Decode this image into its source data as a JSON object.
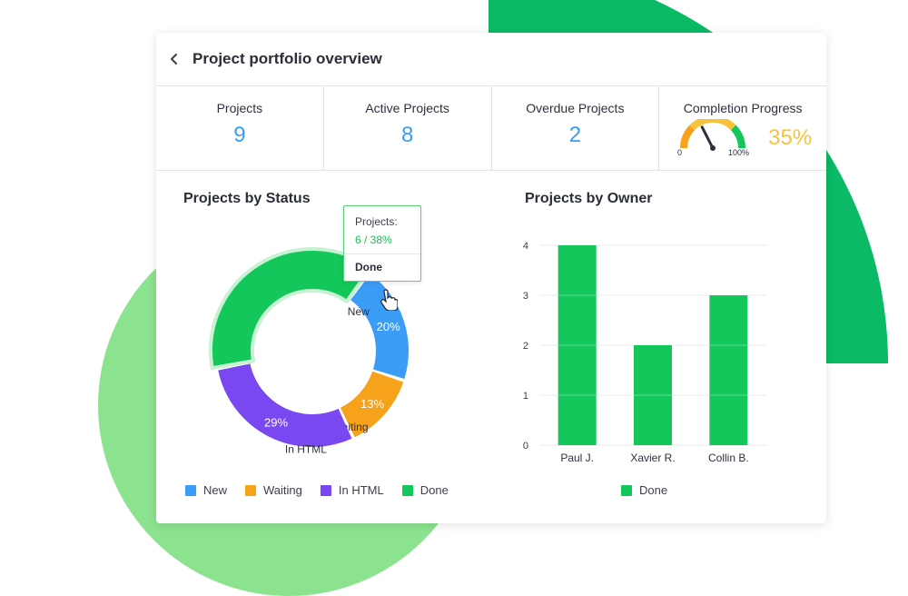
{
  "header": {
    "title": "Project portfolio overview"
  },
  "stats": [
    {
      "label": "Projects",
      "value": "9"
    },
    {
      "label": "Active Projects",
      "value": "8"
    },
    {
      "label": "Overdue Projects",
      "value": "2"
    },
    {
      "label": "Completion Progress",
      "value": "35%",
      "gauge_min": "0",
      "gauge_max": "100%",
      "gauge_fraction": 0.35
    }
  ],
  "colors": {
    "new": "#3b9cf6",
    "waiting": "#f7a21b",
    "in_html": "#7a48f0",
    "done": "#13c75a",
    "accent": "#3b9cf6",
    "gauge_value": "#f7c33a"
  },
  "status_chart": {
    "title": "Projects by Status",
    "tooltip": {
      "label": "Projects:",
      "value": "6 / 38%",
      "status": "Done"
    }
  },
  "owner_chart": {
    "title": "Projects by Owner"
  },
  "chart_data": [
    {
      "type": "pie",
      "title": "Projects by Status",
      "categories": [
        "New",
        "Waiting",
        "In HTML",
        "Done"
      ],
      "values": [
        20,
        13,
        29,
        38
      ],
      "value_labels": [
        "20%",
        "13%",
        "29%",
        ""
      ],
      "colors": [
        "#3b9cf6",
        "#f7a21b",
        "#7a48f0",
        "#13c75a"
      ],
      "highlighted": "Done",
      "legend": [
        "New",
        "Waiting",
        "In HTML",
        "Done"
      ],
      "legend_position": "bottom"
    },
    {
      "type": "bar",
      "title": "Projects by Owner",
      "categories": [
        "Paul J.",
        "Xavier R.",
        "Collin B."
      ],
      "series": [
        {
          "name": "Done",
          "values": [
            4,
            2,
            3
          ]
        }
      ],
      "ylim": [
        0,
        4
      ],
      "yticks": [
        "0",
        "1",
        "2",
        "3",
        "4"
      ],
      "grid": true,
      "colors": [
        "#13c75a"
      ],
      "legend_position": "bottom"
    }
  ]
}
